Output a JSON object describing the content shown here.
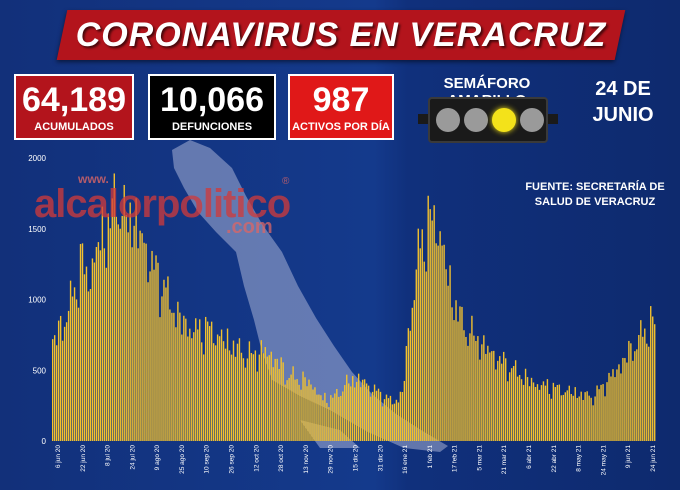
{
  "header": {
    "title": "CORONAVIRUS EN VERACRUZ"
  },
  "stats": {
    "acumulados": {
      "value": "64,189",
      "label": "ACUMULADOS"
    },
    "defunciones": {
      "value": "10,066",
      "label": "DEFUNCIONES"
    },
    "activos": {
      "value": "987",
      "label": "ACTIVOS POR DÍA"
    }
  },
  "semaforo": {
    "label": "SEMÁFORO AMARILLO",
    "active_light": 3,
    "active_color": "#f3e21a"
  },
  "date": {
    "line1": "24 DE",
    "line2": "JUNIO"
  },
  "source": {
    "line1": "FUENTE: SECRETARÍA DE",
    "line2": "SALUD DE VERACRUZ"
  },
  "watermark": {
    "www": "www.",
    "main": "alcalorpolitico",
    "reg": "®",
    "com": ".com"
  },
  "chart_data": {
    "type": "bar",
    "bar_color": "#f2c12e",
    "ylim": [
      0,
      2000
    ],
    "yticks": [
      0,
      500,
      1000,
      1500,
      2000
    ],
    "x_tick_labels": [
      "6 jun 20",
      "22 jun 20",
      "8 jul 20",
      "24 jul 20",
      "9 ago 20",
      "25 ago 20",
      "10 sep 20",
      "26 sep 20",
      "12 oct 20",
      "28 oct 20",
      "13 nov 20",
      "29 nov 20",
      "15 dic 20",
      "31 dic 20",
      "16 ene 21",
      "1 feb 21",
      "17 feb 21",
      "5 mar 21",
      "21 mar 21",
      "6 abr 21",
      "22 abr 21",
      "8 may 21",
      "24 may 21",
      "9 jun 21",
      "24 jun 21"
    ],
    "daily_values_anchors": [
      [
        0,
        720
      ],
      [
        4,
        820
      ],
      [
        8,
        950
      ],
      [
        12,
        1150
      ],
      [
        15,
        1320
      ],
      [
        18,
        1150
      ],
      [
        22,
        1400
      ],
      [
        26,
        1500
      ],
      [
        30,
        1650
      ],
      [
        33,
        1780
      ],
      [
        36,
        1600
      ],
      [
        40,
        1650
      ],
      [
        44,
        1500
      ],
      [
        48,
        1350
      ],
      [
        52,
        1220
      ],
      [
        56,
        1120
      ],
      [
        60,
        980
      ],
      [
        66,
        850
      ],
      [
        72,
        800
      ],
      [
        78,
        820
      ],
      [
        84,
        760
      ],
      [
        90,
        700
      ],
      [
        96,
        640
      ],
      [
        100,
        620
      ],
      [
        106,
        660
      ],
      [
        112,
        600
      ],
      [
        118,
        480
      ],
      [
        124,
        450
      ],
      [
        130,
        420
      ],
      [
        136,
        300
      ],
      [
        142,
        320
      ],
      [
        148,
        420
      ],
      [
        154,
        450
      ],
      [
        160,
        390
      ],
      [
        166,
        330
      ],
      [
        172,
        280
      ],
      [
        176,
        350
      ],
      [
        180,
        900
      ],
      [
        184,
        1350
      ],
      [
        188,
        1550
      ],
      [
        192,
        1620
      ],
      [
        196,
        1450
      ],
      [
        200,
        1100
      ],
      [
        206,
        860
      ],
      [
        212,
        760
      ],
      [
        218,
        680
      ],
      [
        224,
        600
      ],
      [
        230,
        540
      ],
      [
        236,
        480
      ],
      [
        242,
        420
      ],
      [
        248,
        400
      ],
      [
        254,
        380
      ],
      [
        260,
        360
      ],
      [
        266,
        340
      ],
      [
        272,
        320
      ],
      [
        278,
        420
      ],
      [
        284,
        520
      ],
      [
        290,
        640
      ],
      [
        296,
        760
      ],
      [
        303,
        880
      ]
    ]
  }
}
